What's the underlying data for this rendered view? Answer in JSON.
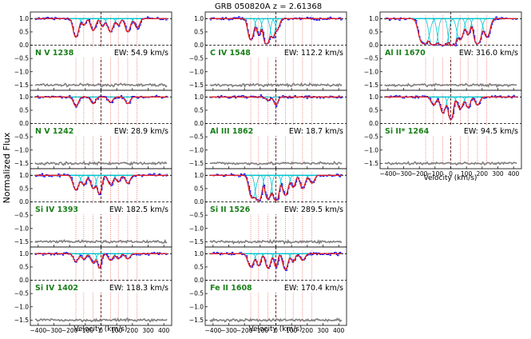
{
  "chart_data": {
    "type": "line",
    "title": "GRB 050820A  z = 2.61368",
    "ylabel": "Normalized Flux",
    "xlabel": "Velocity (km/s)",
    "xlim": [
      -450,
      450
    ],
    "ylim": [
      -1.7,
      1.25
    ],
    "xticks": [
      -400,
      -300,
      -200,
      -100,
      0,
      100,
      200,
      300,
      400
    ],
    "xtick_labels": [
      "−400",
      "−300",
      "−200",
      "−100",
      "0",
      "100",
      "200",
      "300",
      "400"
    ],
    "yticks": [
      1.0,
      0.5,
      0.0,
      -0.5,
      -1.0,
      -1.5
    ],
    "ytick_labels": [
      "1.0",
      "0.5",
      "0.0",
      "−0.5",
      "−1.0",
      "−1.5"
    ],
    "grid": false,
    "component_velocities": [
      -160,
      -110,
      -50,
      0,
      60,
      110,
      170,
      230
    ],
    "colors": {
      "data": "#0000ff",
      "model": "#e8211c",
      "components": "#00c8d2",
      "error": "#808080",
      "markers": "#e8211c",
      "ion_label": "#1a7f1a"
    },
    "panels": [
      {
        "ion": "N V 1238",
        "ew": "EW: 54.9 km/s"
      },
      {
        "ion": "N V 1242",
        "ew": "EW: 28.9 km/s"
      },
      {
        "ion": "Si IV 1393",
        "ew": "EW: 182.5 km/s"
      },
      {
        "ion": "Si IV 1402",
        "ew": "EW: 118.3 km/s"
      },
      {
        "ion": "C IV 1548",
        "ew": "EW: 112.2 km/s"
      },
      {
        "ion": "Al III 1862",
        "ew": "EW: 18.7 km/s"
      },
      {
        "ion": "Si II 1526",
        "ew": "EW: 289.5 km/s"
      },
      {
        "ion": "Fe II 1608",
        "ew": "EW: 170.4 km/s"
      },
      {
        "ion": "Al II 1670",
        "ew": "EW: 316.0 km/s"
      },
      {
        "ion": "Si II* 1264",
        "ew": "EW: 94.5 km/s"
      }
    ]
  }
}
